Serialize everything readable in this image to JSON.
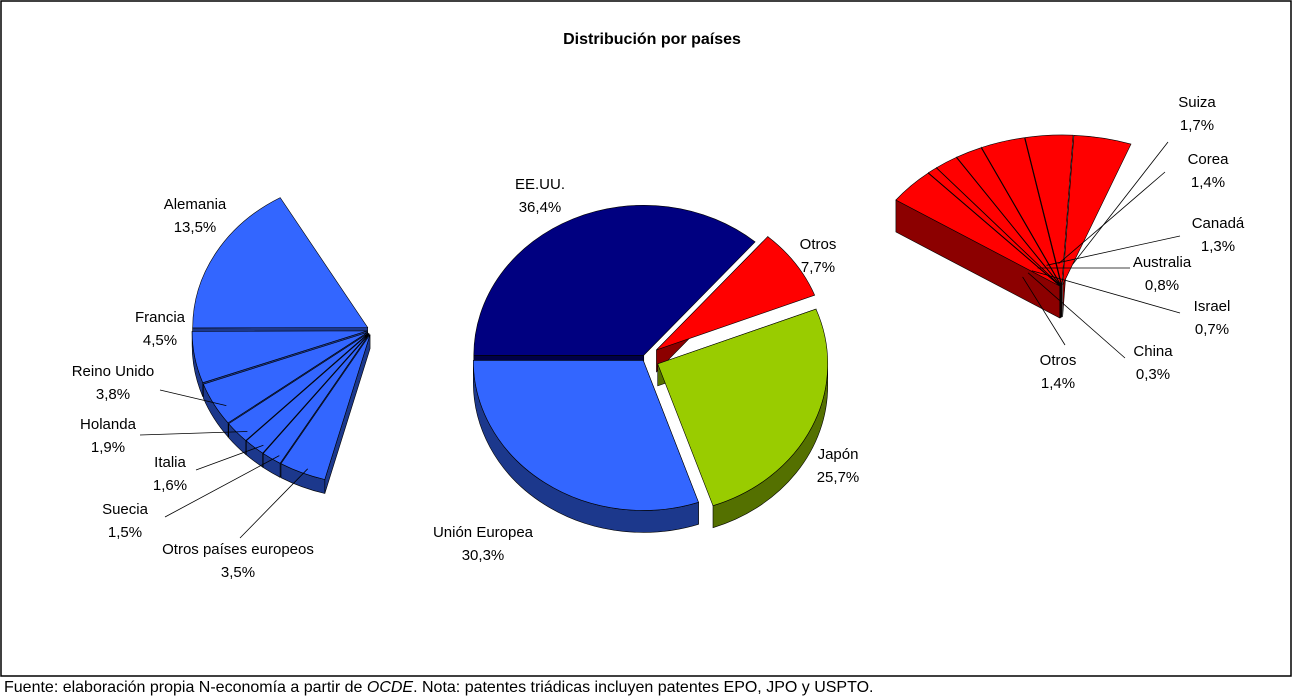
{
  "chart_data": [
    {
      "type": "pie",
      "title": "Distribución por países",
      "categories": [
        "EE.UU.",
        "Otros",
        "Japón",
        "Unión Europea"
      ],
      "values": [
        36.4,
        7.7,
        25.7,
        30.3
      ],
      "value_labels": [
        "36,4%",
        "7,7%",
        "25,7%",
        "30,3%"
      ],
      "colors": [
        "#000080",
        "#ff0000",
        "#99cc00",
        "#3366ff"
      ]
    },
    {
      "type": "pie",
      "categories": [
        "Alemania",
        "Francia",
        "Reino Unido",
        "Holanda",
        "Italia",
        "Suecia",
        "Otros países europeos"
      ],
      "values": [
        13.5,
        4.5,
        3.8,
        1.9,
        1.6,
        1.5,
        3.5
      ],
      "value_labels": [
        "13,5%",
        "4,5%",
        "3,8%",
        "1,9%",
        "1,6%",
        "1,5%",
        "3,5%"
      ],
      "color": "#3366ff"
    },
    {
      "type": "pie",
      "categories": [
        "Suiza",
        "Corea",
        "Canadá",
        "Australia",
        "Israel",
        "China",
        "Otros"
      ],
      "values": [
        1.7,
        1.4,
        1.3,
        0.8,
        0.7,
        0.3,
        1.4
      ],
      "value_labels": [
        "1,7%",
        "1,4%",
        "1,3%",
        "0,8%",
        "0,7%",
        "0,3%",
        "1,4%"
      ],
      "color": "#ff0000"
    }
  ],
  "footnote": [
    "Fuente: elaboración propia N-economía a partir de ",
    "OCDE",
    ". Nota: patentes triádicas incluyen patentes EPO, JPO y USPTO."
  ]
}
